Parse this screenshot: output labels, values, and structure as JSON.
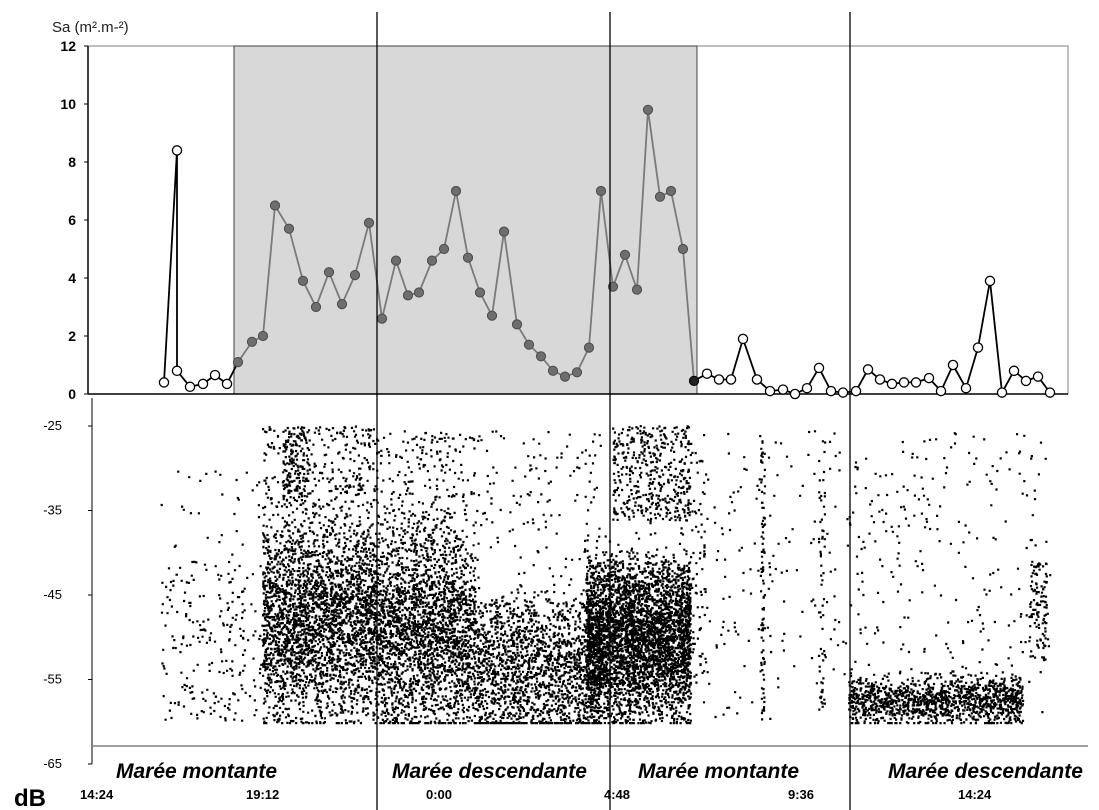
{
  "chart_data": [
    {
      "type": "line",
      "ylabel": "Sa (m².m-²)",
      "ylim": [
        0,
        12
      ],
      "y_ticks": [
        0,
        2,
        4,
        6,
        8,
        10,
        12
      ],
      "shaded_band": {
        "from_index": 6,
        "to_index": 52,
        "color": "#d8d8d8"
      },
      "colors": {
        "outside": "#000000",
        "inside": "#7a7a7a",
        "marker_inside": "#6e6e6e"
      },
      "series": [
        {
          "values": [
            0.4,
            8.4,
            0.8,
            0.25,
            0.35,
            0.65,
            0.35,
            1.1,
            1.8,
            2.0,
            6.5,
            5.7,
            3.9,
            3.0,
            4.2,
            3.1,
            4.1,
            5.9,
            2.6,
            4.6,
            3.4,
            3.5,
            4.6,
            5.0,
            7.0,
            4.7,
            3.5,
            2.7,
            5.6,
            2.4,
            1.7,
            1.3,
            0.8,
            0.6,
            0.75,
            1.6,
            7.0,
            3.7,
            4.8,
            3.6,
            9.8,
            6.8,
            7.0,
            5.0,
            0.45,
            0.7,
            0.5,
            0.5,
            1.9,
            0.5,
            0.1,
            0.15,
            0.0,
            0.2,
            0.9,
            0.1,
            0.05,
            0.1,
            0.85,
            0.5,
            0.35,
            0.4,
            0.4,
            0.55,
            0.1,
            1.0,
            0.2,
            1.6,
            3.9,
            0.05,
            0.8,
            0.45,
            0.6,
            0.05
          ],
          "shaded_indices": [
            7,
            44
          ]
        }
      ]
    },
    {
      "type": "scatter",
      "ylabel": "dB",
      "ylim": [
        -65,
        -25
      ],
      "y_ticks": [
        -25,
        -35,
        -45,
        -55,
        -65
      ],
      "x_tick_labels": [
        "14:24",
        "19:12",
        "0:00",
        "4:48",
        "9:36",
        "14:24"
      ],
      "clusters_note": "dense echo cloud mostly between -42 and -60 dB"
    }
  ],
  "tide_labels": [
    "Marée montante",
    "Marée descendante",
    "Marée montante",
    "Marée descendante"
  ],
  "colors": {
    "axis": "#000000",
    "frame": "#808080",
    "points": "#000000"
  }
}
